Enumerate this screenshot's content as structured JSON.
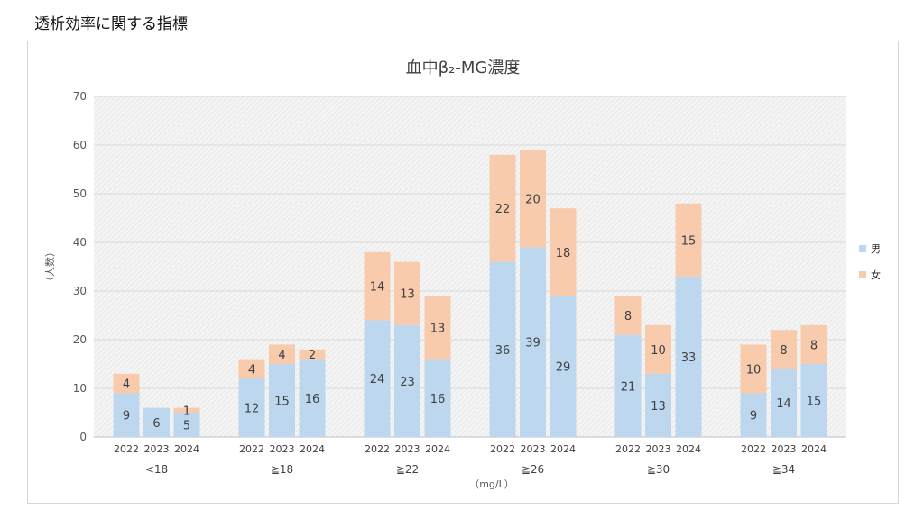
{
  "page": {
    "title": "透析効率に関する指標"
  },
  "chart_data": {
    "type": "bar",
    "stacked": true,
    "title": "血中β₂-MG濃度",
    "ylabel": "（人数）",
    "xlabel": "（mg/L）",
    "ylim": [
      0,
      70
    ],
    "yticks": [
      0,
      10,
      20,
      30,
      40,
      50,
      60,
      70
    ],
    "grid": true,
    "legend_position": "right",
    "groups": [
      {
        "label": "<18",
        "years": [
          "2022",
          "2023",
          "2024"
        ]
      },
      {
        "label": "≧18",
        "years": [
          "2022",
          "2023",
          "2024"
        ]
      },
      {
        "label": "≧22",
        "years": [
          "2022",
          "2023",
          "2024"
        ]
      },
      {
        "label": "≧26",
        "years": [
          "2022",
          "2023",
          "2024"
        ]
      },
      {
        "label": "≧30",
        "years": [
          "2022",
          "2023",
          "2024"
        ]
      },
      {
        "label": "≧34",
        "years": [
          "2022",
          "2023",
          "2024"
        ]
      }
    ],
    "series": [
      {
        "name": "男",
        "color": "#bdd7ee",
        "values": [
          9,
          6,
          5,
          12,
          15,
          16,
          24,
          23,
          16,
          36,
          39,
          29,
          21,
          13,
          33,
          9,
          14,
          15
        ]
      },
      {
        "name": "女",
        "color": "#f8cbad",
        "values": [
          4,
          0,
          1,
          4,
          4,
          2,
          14,
          13,
          13,
          22,
          20,
          18,
          8,
          10,
          15,
          10,
          8,
          8
        ]
      }
    ]
  }
}
